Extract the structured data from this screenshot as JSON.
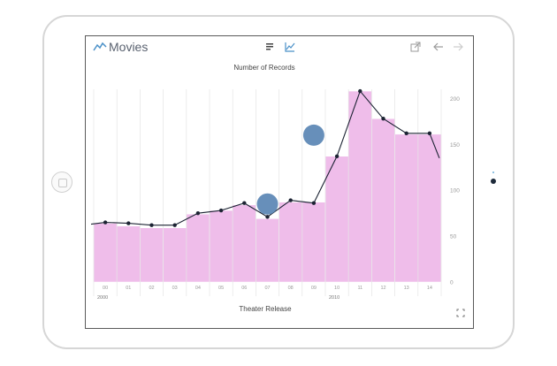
{
  "app": {
    "title": "Movies",
    "icons": [
      "chart-logo-icon",
      "list-view-icon",
      "chart-view-icon",
      "share-icon",
      "back-arrow-icon",
      "forward-arrow-icon",
      "expand-icon"
    ],
    "accent_color": "#4a90c8"
  },
  "chart_data": {
    "type": "bar",
    "title": "Number of Records",
    "xlabel": "Theater Release",
    "ylabel": "",
    "categories": [
      "00",
      "01",
      "02",
      "03",
      "04",
      "05",
      "06",
      "07",
      "08",
      "09",
      "10",
      "11",
      "12",
      "13",
      "14"
    ],
    "year_labels": [
      {
        "label": "2000",
        "index": 0
      },
      {
        "label": "2010",
        "index": 10
      }
    ],
    "values": [
      64,
      61,
      59,
      59,
      74,
      78,
      84,
      69,
      87,
      87,
      137,
      208,
      178,
      161,
      161
    ],
    "line_values": [
      65,
      64,
      62,
      62,
      75,
      78,
      86,
      71,
      89,
      86,
      137,
      208,
      178,
      162,
      162
    ],
    "bubbles": [
      {
        "x": "07",
        "y": 85
      },
      {
        "x": "09",
        "y": 160
      }
    ],
    "ylim": [
      0,
      210
    ],
    "yticks": [
      0,
      50,
      100,
      150,
      200
    ],
    "grid": true,
    "bar_color": "#efbdea",
    "line_color": "#1c2333",
    "bubble_color": "#5f89b6"
  }
}
